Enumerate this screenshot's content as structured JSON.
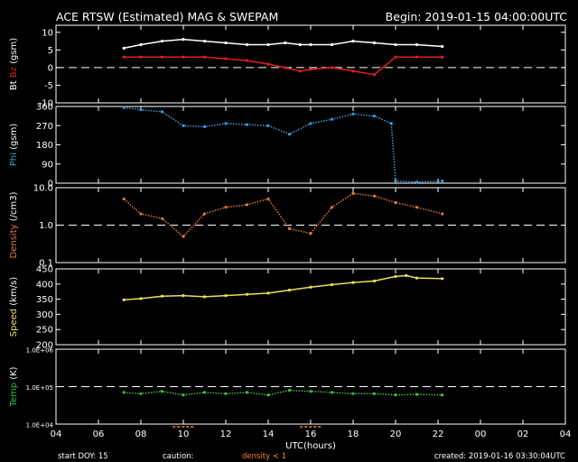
{
  "header": {
    "title": "ACE RTSW (Estimated) MAG & SWEPAM",
    "begin": "Begin: 2019-01-15 04:00:00UTC"
  },
  "footer": {
    "start_doy": "start DOY:  15",
    "caution": "caution:",
    "density_note": "density < 1",
    "created": "created: 2019-01-16 03:30:04UTC"
  },
  "colors": {
    "background": "#000000",
    "axis": "#ffffff",
    "bt": "#ffffff",
    "bz": "#e02020",
    "phi": "#3aa0d8",
    "density": "#e07840",
    "speed": "#e8e060",
    "temp": "#40c040",
    "caution": "#ff8030"
  },
  "chart_data": [
    {
      "type": "line",
      "panel": "mag",
      "ylabel_parts": [
        "Bt",
        "Bz",
        "(gsm)"
      ],
      "ylim": [
        -10,
        12
      ],
      "yticks": [
        "10",
        "5",
        "0",
        "-5",
        "-10"
      ],
      "reference_line": 0,
      "series": [
        {
          "name": "Bt",
          "x": [
            7.2,
            8,
            9,
            10,
            11,
            12,
            13,
            14,
            14.8,
            15.5,
            16,
            17,
            18,
            19,
            20,
            21,
            22.2
          ],
          "values": [
            5.5,
            6.5,
            7.5,
            8,
            7.5,
            7,
            6.5,
            6.5,
            7,
            6.5,
            6.5,
            6.5,
            7.5,
            7,
            6.5,
            6.5,
            6
          ]
        },
        {
          "name": "Bz",
          "x": [
            7.2,
            8,
            9,
            10,
            11,
            12,
            13,
            14,
            14.8,
            15.5,
            16,
            17,
            18,
            19,
            20,
            21,
            22.2
          ],
          "values": [
            3,
            3,
            3,
            3,
            3,
            2.5,
            2,
            1,
            0,
            -1,
            -0.5,
            0,
            -1,
            -2,
            3,
            3,
            3
          ]
        }
      ]
    },
    {
      "type": "scatter",
      "panel": "phi",
      "ylabel_parts": [
        "Phi",
        "(gsm)"
      ],
      "ylim": [
        0,
        360
      ],
      "yticks": [
        "360",
        "270",
        "180",
        "90",
        "0"
      ],
      "series": [
        {
          "name": "Phi",
          "x": [
            7.2,
            8,
            9,
            10,
            11,
            12,
            13,
            14,
            15,
            16,
            17,
            18,
            19,
            19.8,
            20,
            21,
            22.2
          ],
          "values": [
            355,
            345,
            335,
            270,
            265,
            280,
            275,
            270,
            230,
            280,
            300,
            325,
            315,
            280,
            10,
            5,
            10
          ]
        }
      ]
    },
    {
      "type": "scatter",
      "panel": "density",
      "ylabel_parts": [
        "Density",
        "(/cm3)"
      ],
      "ylim": [
        0.1,
        10
      ],
      "log_scale": true,
      "yticks": [
        "10.0",
        "1.0",
        "0.1"
      ],
      "reference_line": 1,
      "series": [
        {
          "name": "Density",
          "x": [
            7.2,
            8,
            9,
            10,
            11,
            12,
            13,
            14,
            15,
            16,
            17,
            18,
            19,
            20,
            21,
            22.2
          ],
          "values": [
            5,
            2,
            1.5,
            0.5,
            2,
            3,
            3.5,
            5,
            0.8,
            0.6,
            3,
            7,
            6,
            4,
            3,
            2
          ]
        }
      ]
    },
    {
      "type": "line",
      "panel": "speed",
      "ylabel_parts": [
        "Speed",
        "(km/s)"
      ],
      "ylim": [
        200,
        450
      ],
      "yticks": [
        "450",
        "400",
        "350",
        "300",
        "250",
        "200"
      ],
      "series": [
        {
          "name": "Speed",
          "x": [
            7.2,
            8,
            9,
            10,
            11,
            12,
            13,
            14,
            15,
            16,
            17,
            18,
            19,
            20,
            20.5,
            21,
            22.2
          ],
          "values": [
            348,
            352,
            360,
            362,
            358,
            362,
            366,
            370,
            380,
            390,
            398,
            405,
            410,
            425,
            428,
            420,
            418
          ]
        }
      ]
    },
    {
      "type": "scatter",
      "panel": "temp",
      "ylabel_parts": [
        "Temp",
        "(K)"
      ],
      "ylim": [
        10000,
        1000000
      ],
      "log_scale": true,
      "yticks": [
        "1.0E+06",
        "1.0E+05",
        "1.0E+04"
      ],
      "reference_line": 100000,
      "series": [
        {
          "name": "Temp",
          "x": [
            7.2,
            8,
            9,
            10,
            11,
            12,
            13,
            14,
            15,
            16,
            17,
            18,
            19,
            20,
            21,
            22.2
          ],
          "values": [
            70000,
            65000,
            75000,
            60000,
            70000,
            65000,
            70000,
            60000,
            80000,
            75000,
            70000,
            65000,
            65000,
            60000,
            62000,
            60000
          ]
        }
      ]
    },
    {
      "type": "axis",
      "panel": "time",
      "xlabel": "UTC(hours)",
      "xlim": [
        4,
        28
      ],
      "xticks": [
        "04",
        "06",
        "08",
        "10",
        "12",
        "14",
        "16",
        "18",
        "20",
        "22",
        "00",
        "02",
        "04"
      ],
      "caution_intervals": [
        [
          9.5,
          10.5
        ],
        [
          15.5,
          16.5
        ]
      ]
    }
  ]
}
